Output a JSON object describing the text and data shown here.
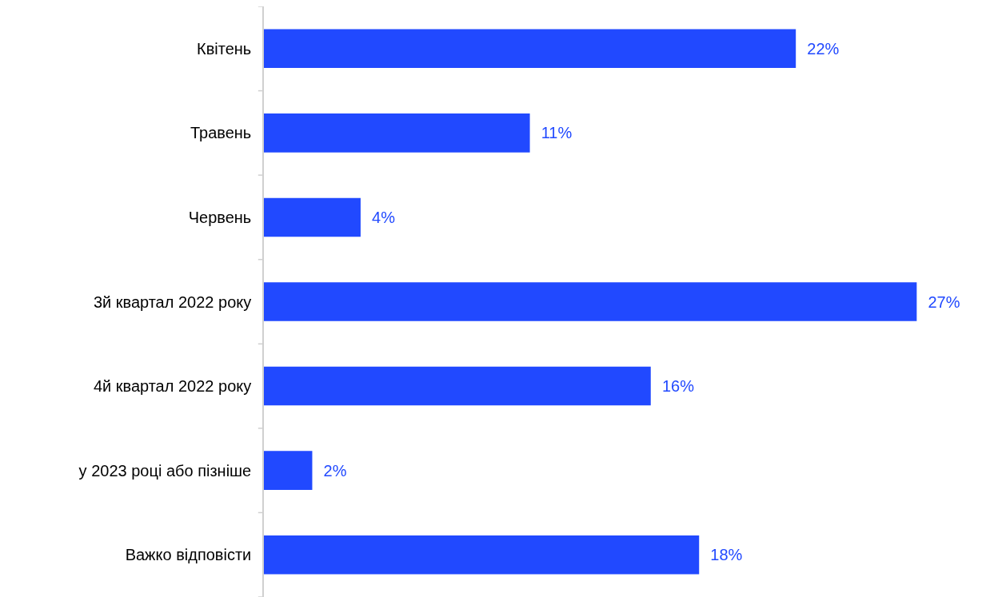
{
  "chart_data": {
    "type": "bar",
    "orientation": "horizontal",
    "categories": [
      "Квітень",
      "Травень",
      "Червень",
      "3й квартал 2022 року",
      "4й квартал 2022 року",
      "у 2023 році або пізніше",
      "Важко відповісти"
    ],
    "values": [
      22,
      11,
      4,
      27,
      16,
      2,
      18
    ],
    "value_labels": [
      "22%",
      "11%",
      "4%",
      "27%",
      "16%",
      "2%",
      "18%"
    ],
    "color": "#2149ff"
  }
}
